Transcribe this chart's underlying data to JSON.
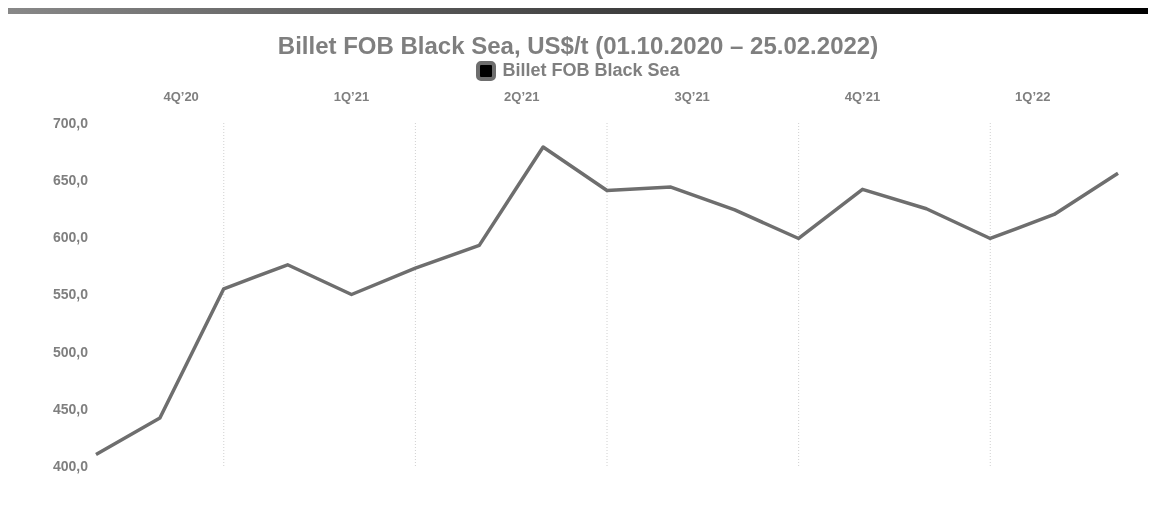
{
  "chart_data": {
    "type": "line",
    "title": "Billet FOB Black Sea, US$/t (01.10.2020 – 25.02.2022)",
    "categories": [
      null,
      null,
      null,
      null,
      null,
      null,
      null,
      null,
      null,
      null,
      null,
      null,
      null,
      null,
      null,
      null,
      null
    ],
    "series": [
      {
        "name": "Billet FOB Black Sea",
        "color": "#6e6e6e",
        "values": [
          410,
          442,
          555,
          576,
          550,
          573,
          593,
          679,
          641,
          644,
          624,
          599,
          642,
          625,
          599,
          620,
          656
        ]
      }
    ],
    "ylim": [
      400,
      700
    ],
    "yticks": [
      {
        "value": 400,
        "label": "400,0"
      },
      {
        "value": 450,
        "label": "450,0"
      },
      {
        "value": 500,
        "label": "500,0"
      },
      {
        "value": 550,
        "label": "550,0"
      },
      {
        "value": 600,
        "label": "600,0"
      },
      {
        "value": 650,
        "label": "650,0"
      },
      {
        "value": 700,
        "label": "700,0"
      }
    ],
    "annotations": [
      "4Q’20",
      "1Q’21",
      "2Q’21",
      "3Q’21",
      "4Q’21",
      "1Q’22"
    ],
    "grid": "x",
    "legend": "top",
    "marker": "none",
    "line_style": "solid"
  }
}
